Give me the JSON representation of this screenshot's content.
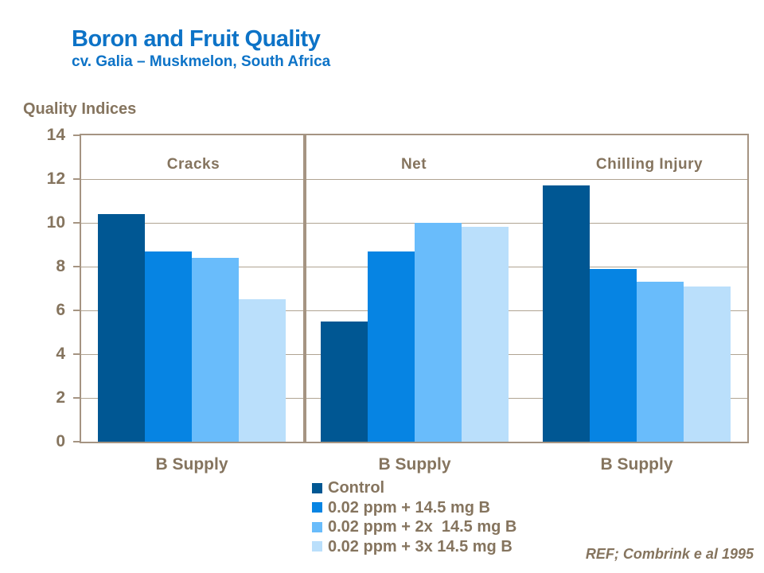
{
  "slide": {
    "title": "Boron and Fruit Quality",
    "subtitle": "cv. Galia – Muskmelon, South Africa",
    "ref": "REF; Combrink e al 1995"
  },
  "chart_data": {
    "type": "bar",
    "title": "Boron and Fruit Quality — cv. Galia – Muskmelon, South Africa",
    "ylabel": "Quality Indices",
    "xlabel": "B Supply",
    "panels": [
      "Cracks",
      "Net",
      "Chilling Injury"
    ],
    "categories": [
      "B Supply",
      "B Supply",
      "B Supply"
    ],
    "series": [
      {
        "name": "Control",
        "color": "#005793",
        "values": [
          10.4,
          5.5,
          11.7
        ]
      },
      {
        "name": "0.02 ppm + 14.5 mg B",
        "color": "#0684e3",
        "values": [
          8.7,
          8.7,
          7.9
        ]
      },
      {
        "name": "0.02 ppm + 2x  14.5 mg B",
        "color": "#69bcfb",
        "values": [
          8.4,
          10.0,
          7.3
        ]
      },
      {
        "name": "0.02 ppm + 3x 14.5 mg B",
        "color": "#badffb",
        "values": [
          6.5,
          9.8,
          7.1
        ]
      }
    ],
    "ylim": [
      0,
      14
    ],
    "yticks": [
      0,
      2,
      4,
      6,
      8,
      10,
      12,
      14
    ],
    "grid": true,
    "legend_position": "bottom-center",
    "colors": {
      "title_blue": "#0d73c7",
      "text_brown": "#85745e",
      "frame_brown": "#a59482",
      "grid_brown": "#b0a492"
    }
  }
}
